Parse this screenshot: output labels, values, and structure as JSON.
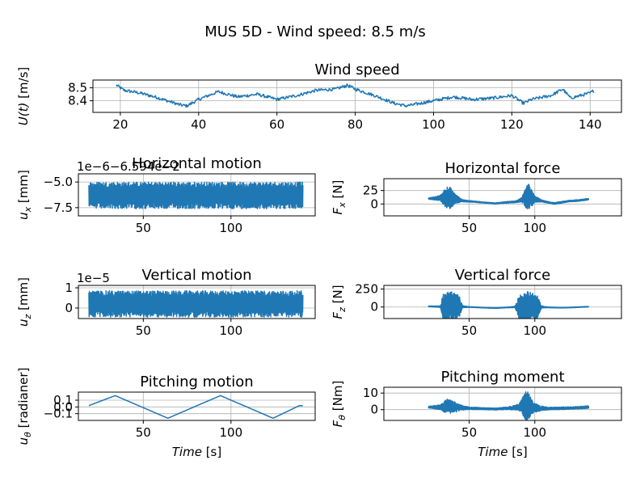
{
  "figure": {
    "suptitle": "MUS 5D - Wind speed: 8.5 m/s",
    "series_color": "#1f77b4"
  },
  "chart_data": [
    {
      "id": "wind",
      "type": "line",
      "title": "Wind speed",
      "xlabel": "",
      "ylabel": "U(t) [m/s]",
      "xlim": [
        13,
        148
      ],
      "ylim": [
        8.31,
        8.56
      ],
      "xticks": [
        20,
        40,
        60,
        80,
        100,
        120,
        140
      ],
      "yticks": [
        8.4,
        8.5
      ],
      "ytick_labels": [
        "8.4",
        "8.5"
      ],
      "grid": true,
      "x": [
        19,
        21,
        25,
        30,
        35,
        37,
        40,
        45,
        50,
        55,
        60,
        65,
        70,
        75,
        78,
        80,
        85,
        90,
        93,
        95,
        100,
        105,
        110,
        115,
        120,
        123,
        125,
        130,
        133,
        135,
        140,
        141
      ],
      "y": [
        8.52,
        8.48,
        8.46,
        8.42,
        8.37,
        8.36,
        8.41,
        8.47,
        8.43,
        8.45,
        8.41,
        8.44,
        8.48,
        8.49,
        8.52,
        8.49,
        8.44,
        8.38,
        8.36,
        8.37,
        8.4,
        8.43,
        8.41,
        8.42,
        8.44,
        8.38,
        8.41,
        8.44,
        8.49,
        8.42,
        8.46,
        8.48
      ],
      "noise": 0.012
    },
    {
      "id": "hmotion",
      "type": "line",
      "title": "Horizontal motion",
      "xlabel": "",
      "ylabel": "u_x [mm]",
      "offset_text": "1e−6−6.594e−2",
      "xlim": [
        13,
        148
      ],
      "ylim": [
        -8.3,
        -4.2
      ],
      "xticks": [
        50,
        100
      ],
      "yticks": [
        -7.5,
        -5.0
      ],
      "ytick_labels": [
        "−7.5",
        "−5.0"
      ],
      "grid": true,
      "x": [
        19,
        141
      ],
      "y": [
        -6.3,
        -6.3
      ],
      "amplitude": [
        1.3,
        1.3
      ],
      "dense_band": true
    },
    {
      "id": "hforce",
      "type": "line",
      "title": "Horizontal force",
      "xlabel": "",
      "ylabel": "F_x [N]",
      "xlim": [
        -15,
        166
      ],
      "ylim": [
        -22,
        47
      ],
      "xticks": [
        50,
        100
      ],
      "yticks": [
        0,
        25
      ],
      "ytick_labels": [
        "0",
        "25"
      ],
      "grid": true,
      "x": [
        19,
        28,
        34,
        40,
        45,
        50,
        60,
        70,
        78,
        85,
        90,
        95,
        100,
        105,
        110,
        115,
        120,
        125,
        130,
        135,
        141
      ],
      "y": [
        10,
        11,
        12,
        9,
        6,
        5,
        3,
        1,
        3,
        4,
        8,
        12,
        9,
        6,
        3,
        1,
        3,
        5,
        6,
        7,
        9
      ],
      "amplitude": [
        1,
        5,
        24,
        8,
        2,
        1.5,
        1,
        1,
        1.5,
        1.5,
        4,
        27,
        6,
        2,
        1.5,
        1.5,
        1.5,
        1.5,
        1.5,
        1.5,
        1.5
      ]
    },
    {
      "id": "vmotion",
      "type": "line",
      "title": "Vertical motion",
      "xlabel": "",
      "ylabel": "u_z [mm]",
      "offset_text": "1e−5",
      "xlim": [
        13,
        148
      ],
      "ylim": [
        -0.52,
        1.12
      ],
      "xticks": [
        50,
        100
      ],
      "yticks": [
        0,
        1
      ],
      "ytick_labels": [
        "0",
        "1"
      ],
      "grid": true,
      "x": [
        19,
        141
      ],
      "y": [
        0.2,
        0.2
      ],
      "amplitude": [
        0.65,
        0.65
      ],
      "dense_band": true
    },
    {
      "id": "vforce",
      "type": "line",
      "title": "Vertical force",
      "xlabel": "",
      "ylabel": "F_z [N]",
      "xlim": [
        -15,
        166
      ],
      "ylim": [
        -160,
        300
      ],
      "xticks": [
        50,
        100
      ],
      "yticks": [
        0,
        250
      ],
      "ytick_labels": [
        "0",
        "250"
      ],
      "grid": true,
      "x": [
        19,
        28,
        30,
        36,
        42,
        45,
        50,
        60,
        70,
        80,
        85,
        88,
        95,
        102,
        105,
        110,
        120,
        130,
        141
      ],
      "y": [
        8,
        5,
        0,
        0,
        0,
        3,
        0,
        -8,
        -15,
        -5,
        0,
        0,
        0,
        0,
        0,
        -5,
        -10,
        -5,
        5
      ],
      "amplitude": [
        5,
        10,
        180,
        220,
        170,
        15,
        5,
        4,
        4,
        5,
        10,
        170,
        220,
        160,
        15,
        5,
        4,
        4,
        4
      ]
    },
    {
      "id": "pitch",
      "type": "line",
      "title": "Pitching motion",
      "xlabel": "Time [s]",
      "ylabel": "u_θ [radianer]",
      "xlim": [
        13,
        148
      ],
      "ylim": [
        -0.2,
        0.22
      ],
      "xticks": [
        50,
        100
      ],
      "yticks": [
        -0.1,
        0.0,
        0.1
      ],
      "ytick_labels": [
        "−0.1",
        "0.0",
        "0.1"
      ],
      "grid": true,
      "x": [
        19,
        34,
        64,
        94,
        124,
        139,
        141
      ],
      "y": [
        0.02,
        0.168,
        -0.168,
        0.168,
        -0.168,
        0.02,
        0.02
      ]
    },
    {
      "id": "pmoment",
      "type": "line",
      "title": "Pitching moment",
      "xlabel": "Time [s]",
      "ylabel": "F_θ [Nm]",
      "xlim": [
        -15,
        166
      ],
      "ylim": [
        -6.5,
        13.5
      ],
      "xticks": [
        50,
        100
      ],
      "yticks": [
        0,
        10
      ],
      "ytick_labels": [
        "0",
        "10"
      ],
      "grid": true,
      "x": [
        19,
        28,
        33,
        38,
        44,
        50,
        60,
        70,
        80,
        88,
        94,
        99,
        105,
        110,
        120,
        130,
        141
      ],
      "y": [
        1.5,
        1.5,
        2,
        1.5,
        1.2,
        0.8,
        0.6,
        0.4,
        0.8,
        1.5,
        2,
        1,
        0.8,
        0.6,
        0.8,
        1,
        1.6
      ],
      "amplitude": [
        0.5,
        1.5,
        4.5,
        3.5,
        1.5,
        0.8,
        0.6,
        0.6,
        0.8,
        2,
        10,
        3,
        1.5,
        0.8,
        0.8,
        0.8,
        0.8
      ]
    }
  ]
}
